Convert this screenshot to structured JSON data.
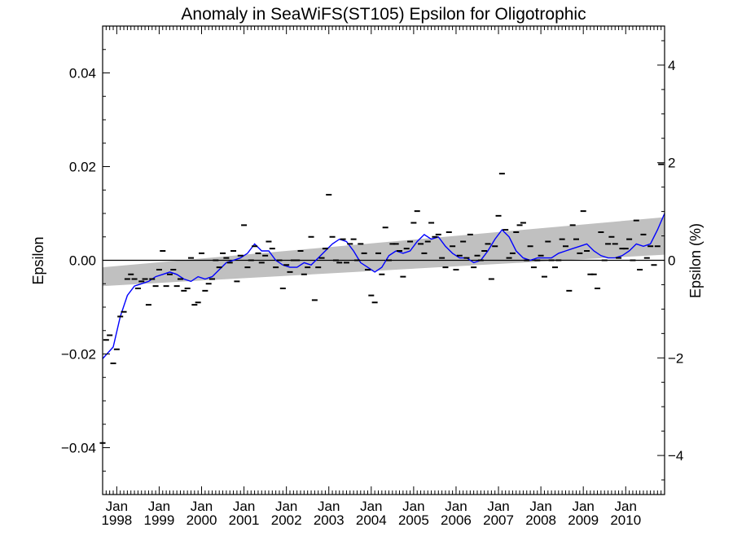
{
  "chart_data": {
    "type": "scatter",
    "title": "Anomaly in SeaWiFS(ST105) Epsilon for Oligotrophic",
    "ylabel": "Epsilon",
    "y2label": "Epsilon (%)",
    "ylim": [
      -0.05,
      0.05
    ],
    "y2lim": [
      -4.8,
      4.8
    ],
    "xlim": [
      "1997-09",
      "2010-12"
    ],
    "grid": false,
    "yticks": [
      "−0.04",
      "−0.02",
      "0.00",
      "0.02",
      "0.04"
    ],
    "y2ticks": [
      "−4",
      "−2",
      "0",
      "2",
      "4"
    ],
    "xtick_labels": [
      {
        "month": "Jan",
        "year": "1998",
        "date": "1998-01"
      },
      {
        "month": "Jan",
        "year": "1999",
        "date": "1999-01"
      },
      {
        "month": "Jan",
        "year": "2000",
        "date": "2000-01"
      },
      {
        "month": "Jan",
        "year": "2001",
        "date": "2001-01"
      },
      {
        "month": "Jan",
        "year": "2002",
        "date": "2002-01"
      },
      {
        "month": "Jan",
        "year": "2003",
        "date": "2003-01"
      },
      {
        "month": "Jan",
        "year": "2004",
        "date": "2004-01"
      },
      {
        "month": "Jan",
        "year": "2005",
        "date": "2005-01"
      },
      {
        "month": "Jan",
        "year": "2006",
        "date": "2006-01"
      },
      {
        "month": "Jan",
        "year": "2007",
        "date": "2007-01"
      },
      {
        "month": "Jan",
        "year": "2008",
        "date": "2008-01"
      },
      {
        "month": "Jan",
        "year": "2009",
        "date": "2009-01"
      },
      {
        "month": "Jan",
        "year": "2010",
        "date": "2010-01"
      }
    ],
    "zero_line": 0.0,
    "trend_band": {
      "x": [
        "1997-09",
        "2010-12"
      ],
      "lower": [
        -0.0055,
        0.0012
      ],
      "upper": [
        -0.0015,
        0.0092
      ]
    },
    "monthly_points": {
      "x": [
        "1997-09",
        "1997-10",
        "1997-11",
        "1997-12",
        "1998-01",
        "1998-02",
        "1998-03",
        "1998-04",
        "1998-05",
        "1998-06",
        "1998-07",
        "1998-08",
        "1998-09",
        "1998-10",
        "1998-11",
        "1998-12",
        "1999-01",
        "1999-02",
        "1999-03",
        "1999-04",
        "1999-05",
        "1999-06",
        "1999-07",
        "1999-08",
        "1999-09",
        "1999-10",
        "1999-11",
        "1999-12",
        "2000-01",
        "2000-02",
        "2000-03",
        "2000-04",
        "2000-05",
        "2000-06",
        "2000-07",
        "2000-08",
        "2000-09",
        "2000-10",
        "2000-11",
        "2000-12",
        "2001-01",
        "2001-02",
        "2001-03",
        "2001-04",
        "2001-05",
        "2001-06",
        "2001-07",
        "2001-08",
        "2001-09",
        "2001-10",
        "2001-11",
        "2001-12",
        "2002-01",
        "2002-02",
        "2002-03",
        "2002-04",
        "2002-05",
        "2002-06",
        "2002-07",
        "2002-08",
        "2002-09",
        "2002-10",
        "2002-11",
        "2002-12",
        "2003-01",
        "2003-02",
        "2003-03",
        "2003-04",
        "2003-05",
        "2003-06",
        "2003-07",
        "2003-08",
        "2003-09",
        "2003-10",
        "2003-11",
        "2003-12",
        "2004-01",
        "2004-02",
        "2004-03",
        "2004-04",
        "2004-05",
        "2004-06",
        "2004-07",
        "2004-08",
        "2004-09",
        "2004-10",
        "2004-11",
        "2004-12",
        "2005-01",
        "2005-02",
        "2005-03",
        "2005-04",
        "2005-05",
        "2005-06",
        "2005-07",
        "2005-08",
        "2005-09",
        "2005-10",
        "2005-11",
        "2005-12",
        "2006-01",
        "2006-02",
        "2006-03",
        "2006-04",
        "2006-05",
        "2006-06",
        "2006-07",
        "2006-08",
        "2006-09",
        "2006-10",
        "2006-11",
        "2006-12",
        "2007-01",
        "2007-02",
        "2007-03",
        "2007-04",
        "2007-05",
        "2007-06",
        "2007-07",
        "2007-08",
        "2007-09",
        "2007-10",
        "2007-11",
        "2007-12",
        "2008-01",
        "2008-02",
        "2008-03",
        "2008-04",
        "2008-05",
        "2008-06",
        "2008-07",
        "2008-08",
        "2008-09",
        "2008-10",
        "2008-11",
        "2008-12",
        "2009-01",
        "2009-02",
        "2009-03",
        "2009-04",
        "2009-05",
        "2009-06",
        "2009-07",
        "2009-08",
        "2009-09",
        "2009-10",
        "2009-11",
        "2009-12",
        "2010-01",
        "2010-02",
        "2010-03",
        "2010-04",
        "2010-05",
        "2010-06",
        "2010-07",
        "2010-08",
        "2010-09",
        "2010-10",
        "2010-11"
      ],
      "y": [
        -0.039,
        -0.017,
        -0.016,
        -0.022,
        -0.019,
        -0.012,
        -0.011,
        -0.004,
        -0.003,
        -0.004,
        -0.006,
        -0.0045,
        -0.004,
        -0.0095,
        -0.004,
        -0.0055,
        -0.002,
        0.002,
        -0.0055,
        -0.003,
        -0.002,
        -0.0055,
        -0.004,
        -0.0065,
        -0.006,
        0.0005,
        -0.0095,
        -0.009,
        0.0015,
        -0.0065,
        -0.005,
        -0.004,
        0.0,
        -0.0015,
        0.0015,
        0.0005,
        -0.0005,
        0.002,
        -0.0045,
        0.001,
        0.0075,
        -0.0015,
        0.0,
        0.003,
        0.0015,
        -0.0005,
        0.001,
        0.004,
        0.0025,
        -0.0015,
        0.0,
        -0.006,
        -0.001,
        -0.0025,
        0.0,
        0.0,
        0.002,
        -0.003,
        -0.0015,
        0.005,
        -0.0085,
        -0.0015,
        0.0005,
        0.0025,
        0.014,
        0.005,
        0.0,
        -0.0005,
        0.0045,
        -0.0005,
        0.0035,
        0.0045,
        0.0,
        0.0035,
        0.0015,
        -0.002,
        -0.0075,
        -0.009,
        0.0015,
        -0.003,
        0.007,
        0.0,
        0.0035,
        0.0035,
        0.002,
        -0.0035,
        0.0025,
        0.004,
        0.008,
        0.0105,
        0.0035,
        0.0015,
        0.004,
        0.008,
        0.005,
        0.0055,
        0.0005,
        -0.0015,
        0.006,
        0.003,
        -0.002,
        0.001,
        0.004,
        0.0005,
        0.0055,
        -0.0015,
        0.001,
        0.0,
        0.002,
        0.0035,
        -0.004,
        0.003,
        0.0095,
        0.0185,
        0.0065,
        0.0005,
        0.0015,
        0.006,
        0.0075,
        0.008,
        0.0,
        0.003,
        -0.0015,
        0.0,
        0.001,
        -0.0035,
        0.004,
        0.0,
        -0.0015,
        0.0,
        0.0045,
        0.003,
        -0.0065,
        0.0075,
        0.0045,
        0.0015,
        0.0105,
        0.002,
        -0.003,
        -0.003,
        -0.006,
        0.006,
        0.0,
        0.0035,
        0.005,
        0.0035,
        0.0005,
        0.0025,
        0.0025,
        0.0045,
        0.0,
        0.0085,
        -0.002,
        0.0055,
        0.0005,
        0.003,
        -0.001,
        0.003,
        0.0205
      ]
    },
    "series": [
      {
        "color": "#0000ff",
        "x": [
          "1997-09",
          "1997-12",
          "1998-02",
          "1998-04",
          "1998-06",
          "1998-08",
          "1998-10",
          "1998-12",
          "1999-02",
          "1999-04",
          "1999-06",
          "1999-08",
          "1999-10",
          "1999-12",
          "2000-02",
          "2000-04",
          "2000-06",
          "2000-08",
          "2000-10",
          "2000-12",
          "2001-02",
          "2001-04",
          "2001-06",
          "2001-08",
          "2001-10",
          "2001-12",
          "2002-02",
          "2002-04",
          "2002-06",
          "2002-08",
          "2002-10",
          "2002-12",
          "2003-02",
          "2003-04",
          "2003-06",
          "2003-08",
          "2003-10",
          "2003-12",
          "2004-02",
          "2004-04",
          "2004-06",
          "2004-08",
          "2004-10",
          "2004-12",
          "2005-02",
          "2005-04",
          "2005-06",
          "2005-08",
          "2005-10",
          "2005-12",
          "2006-02",
          "2006-04",
          "2006-06",
          "2006-08",
          "2006-10",
          "2006-12",
          "2007-02",
          "2007-04",
          "2007-06",
          "2007-08",
          "2007-10",
          "2007-12",
          "2008-02",
          "2008-04",
          "2008-06",
          "2008-08",
          "2008-10",
          "2008-12",
          "2009-02",
          "2009-04",
          "2009-06",
          "2009-08",
          "2009-10",
          "2009-12",
          "2010-02",
          "2010-04",
          "2010-06",
          "2010-08",
          "2010-10",
          "2010-12"
        ],
        "y": [
          -0.021,
          -0.0185,
          -0.012,
          -0.0075,
          -0.0055,
          -0.005,
          -0.0045,
          -0.0035,
          -0.003,
          -0.0025,
          -0.003,
          -0.004,
          -0.0045,
          -0.0035,
          -0.004,
          -0.0035,
          -0.002,
          -0.0005,
          0.0,
          0.0005,
          0.0015,
          0.0035,
          0.002,
          0.002,
          0.0,
          -0.001,
          -0.0015,
          -0.0015,
          -0.0005,
          -0.001,
          0.0005,
          0.002,
          0.0035,
          0.0045,
          0.004,
          0.002,
          -0.0005,
          -0.0015,
          -0.0025,
          -0.0015,
          0.001,
          0.002,
          0.0015,
          0.002,
          0.004,
          0.0055,
          0.0045,
          0.005,
          0.003,
          0.0015,
          0.0005,
          0.0005,
          -0.0005,
          0.0,
          0.002,
          0.0045,
          0.0065,
          0.005,
          0.002,
          0.0005,
          0.0,
          0.0005,
          0.0005,
          0.0005,
          0.0015,
          0.002,
          0.0025,
          0.003,
          0.0035,
          0.002,
          0.001,
          0.0005,
          0.0005,
          0.001,
          0.002,
          0.0035,
          0.003,
          0.0035,
          0.0065,
          0.01
        ]
      }
    ],
    "colors": {
      "band": "#c0c0c0",
      "line": "#0000ff",
      "points": "#000000",
      "axes": "#000000",
      "background": "#ffffff"
    }
  }
}
